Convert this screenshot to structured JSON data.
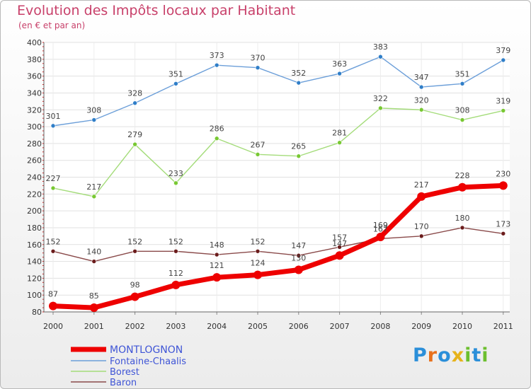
{
  "title": "Evolution des Impôts locaux par Habitant",
  "subtitle": "(en € et par an)",
  "logo": {
    "letters": [
      "P",
      "r",
      "o",
      "x",
      "i",
      "t",
      "i"
    ],
    "colors": [
      "#2b8fd9",
      "#e8711c",
      "#2b8fd9",
      "#e6b31a",
      "#6cbf2e",
      "#2b8fd9",
      "#6cbf2e"
    ]
  },
  "chart_data": {
    "type": "line",
    "title": "Evolution des Impôts locaux par Habitant",
    "subtitle": "(en € et par an)",
    "categories": [
      "2000",
      "2001",
      "2002",
      "2003",
      "2004",
      "2005",
      "2006",
      "2007",
      "2008",
      "2009",
      "2010",
      "2011"
    ],
    "ylim": [
      80,
      400
    ],
    "yticks": [
      80,
      100,
      120,
      140,
      160,
      180,
      200,
      220,
      240,
      260,
      280,
      300,
      320,
      340,
      360,
      380,
      400
    ],
    "grid": true,
    "legend_position": "bottom-left",
    "series": [
      {
        "name": "MONTLOGNON",
        "color": "#ee0000",
        "marker": "#ee0000",
        "values": [
          87,
          85,
          98,
          112,
          121,
          124,
          130,
          147,
          169,
          217,
          228,
          230
        ]
      },
      {
        "name": "Fontaine-Chaalis",
        "color": "#6c9fd9",
        "marker": "#2f7ec8",
        "values": [
          301,
          308,
          328,
          351,
          373,
          370,
          352,
          363,
          383,
          347,
          351,
          379
        ]
      },
      {
        "name": "Borest",
        "color": "#a4dc7a",
        "marker": "#78c832",
        "values": [
          227,
          217,
          279,
          233,
          286,
          267,
          265,
          281,
          322,
          320,
          308,
          319
        ]
      },
      {
        "name": "Baron",
        "color": "#8a4a4a",
        "marker": "#6b1c1c",
        "values": [
          152,
          140,
          152,
          152,
          148,
          152,
          147,
          157,
          167,
          170,
          180,
          173
        ]
      }
    ]
  }
}
